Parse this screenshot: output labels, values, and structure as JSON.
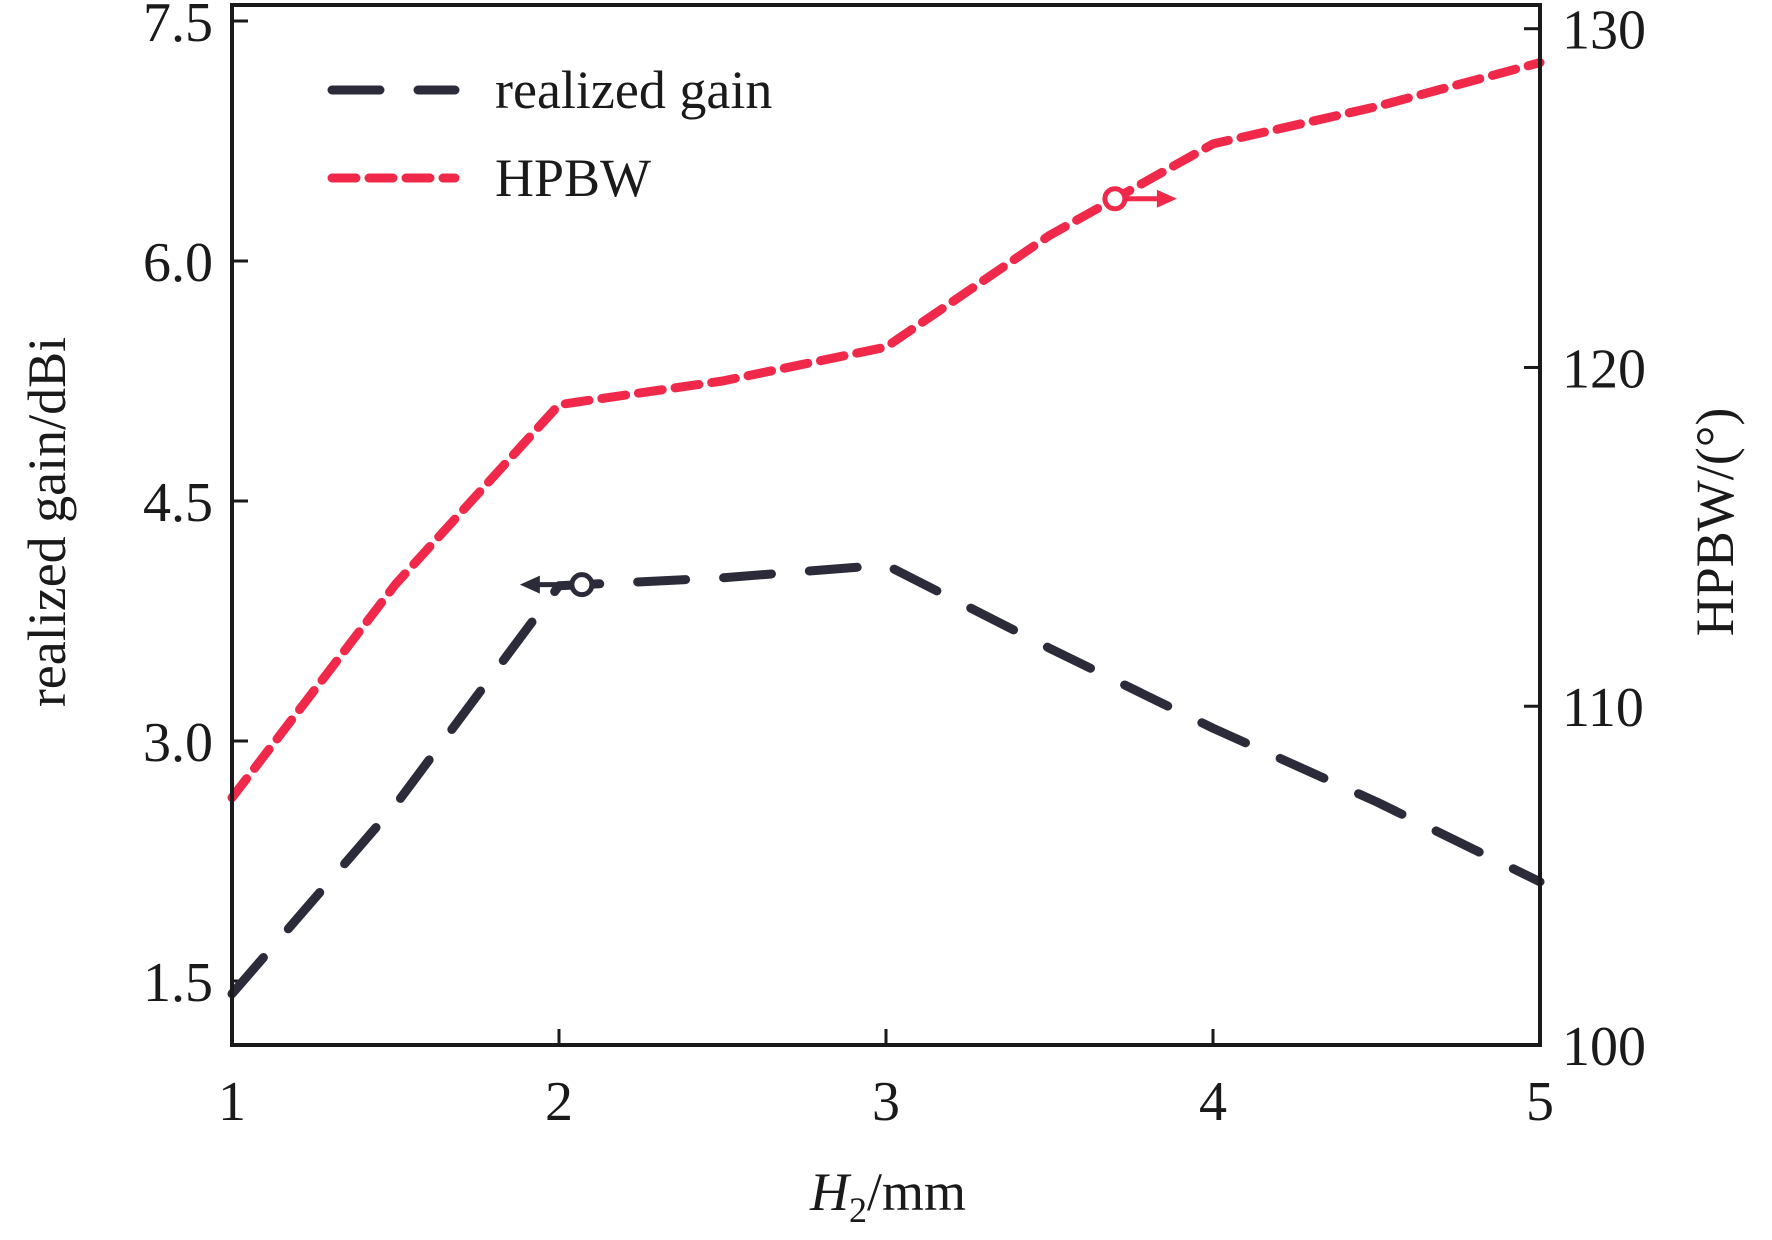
{
  "chart_data": {
    "type": "line",
    "xlabel": {
      "italic": "H",
      "sub": "2",
      "rest": "/mm"
    },
    "ylabel_left": "realized gain/dBi",
    "ylabel_right": "HPBW/(°)",
    "xlim": [
      1,
      5
    ],
    "ylim_left": [
      1.1,
      7.6
    ],
    "ylim_right": [
      100,
      130.7
    ],
    "x_ticks": [
      "1",
      "2",
      "3",
      "4",
      "5"
    ],
    "y_left_ticks": [
      "1.5",
      "3.0",
      "4.5",
      "6.0",
      "7.5"
    ],
    "y_right_ticks": [
      "100",
      "110",
      "120",
      "130"
    ],
    "grid": false,
    "legend_position": "top-left",
    "series": [
      {
        "name": "realized gain",
        "axis": "left",
        "color": "#2b2b3a",
        "x": [
          1.0,
          1.5,
          2.0,
          2.5,
          3.0,
          3.5,
          4.0,
          4.5,
          5.0
        ],
        "y": [
          1.42,
          2.6,
          3.97,
          4.02,
          4.1,
          3.58,
          3.08,
          2.62,
          2.12
        ]
      },
      {
        "name": "HPBW",
        "axis": "right",
        "color": "#f0284a",
        "x": [
          1.0,
          1.5,
          2.0,
          2.5,
          3.0,
          3.5,
          4.0,
          4.5,
          5.0
        ],
        "y": [
          107.3,
          113.6,
          118.9,
          119.6,
          120.6,
          123.9,
          126.6,
          127.7,
          129.0
        ]
      }
    ],
    "annotations": [
      {
        "series": "realized gain",
        "x": 2.07,
        "direction": "left"
      },
      {
        "series": "HPBW",
        "x": 3.7,
        "direction": "right"
      }
    ]
  }
}
